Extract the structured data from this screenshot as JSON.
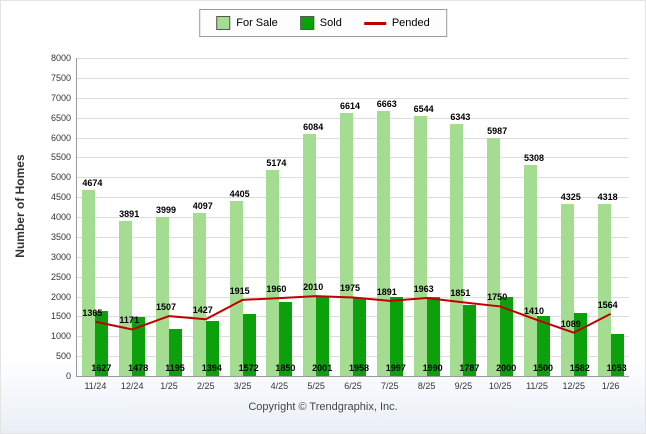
{
  "footer": {
    "copyright": "Copyright © Trendgraphix, Inc."
  },
  "chart_data": {
    "type": "bar",
    "title": "",
    "xlabel": "",
    "ylabel": "Number of Homes",
    "ylim": [
      0,
      8000
    ],
    "ytick_step": 500,
    "grid": true,
    "legend_position": "top",
    "categories": [
      "11/24",
      "12/24",
      "1/25",
      "2/25",
      "3/25",
      "4/25",
      "5/25",
      "6/25",
      "7/25",
      "8/25",
      "9/25",
      "10/25",
      "11/25",
      "12/25",
      "1/26"
    ],
    "series": [
      {
        "name": "For Sale",
        "type": "bar",
        "color": "#a4dc92",
        "values": [
          4674,
          3891,
          3999,
          4097,
          4405,
          5174,
          6084,
          6614,
          6663,
          6544,
          6343,
          5987,
          5308,
          4325,
          4318
        ]
      },
      {
        "name": "Sold",
        "type": "bar",
        "color": "#0ca10c",
        "values": [
          1627,
          1478,
          1195,
          1394,
          1572,
          1850,
          2001,
          1958,
          1997,
          1990,
          1787,
          2000,
          1500,
          1582,
          1053
        ]
      },
      {
        "name": "Pended",
        "type": "line",
        "color": "#c00000",
        "values": [
          1365,
          1171,
          1507,
          1427,
          1915,
          1960,
          2010,
          1975,
          1891,
          1963,
          1851,
          1750,
          1410,
          1089,
          1564
        ]
      }
    ]
  }
}
